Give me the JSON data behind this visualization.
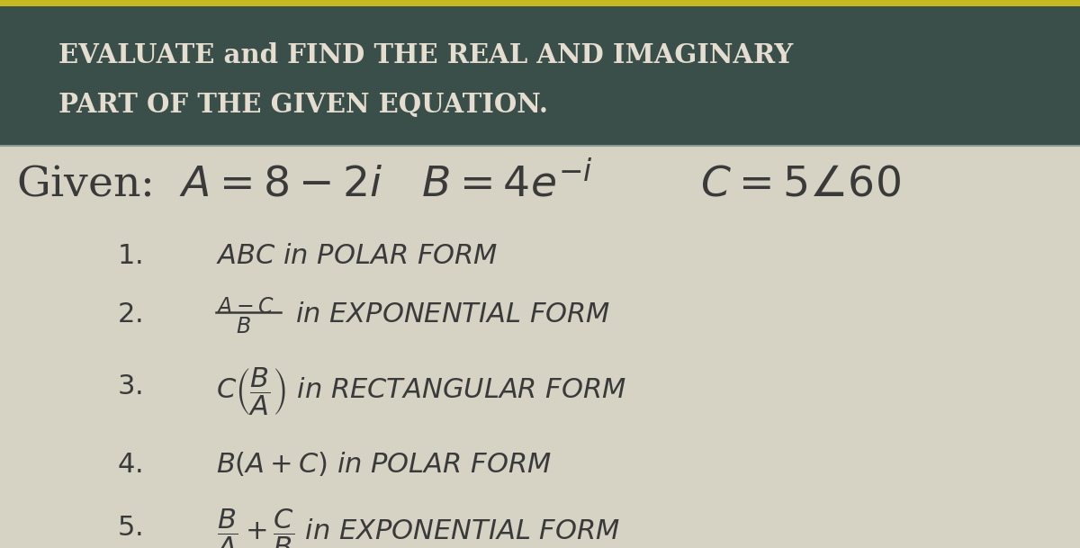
{
  "header_bg_color": "#3a4f4a",
  "header_text_color": "#e5ddd0",
  "body_bg_color": "#d6d3c4",
  "header_line1": "EVALUATE and FIND THE REAL AND IMAGINARY",
  "header_line2": "PART OF THE GIVEN EQUATION.",
  "top_bar_color": "#c8b820",
  "fig_width": 12.0,
  "fig_height": 6.09,
  "dpi": 100
}
